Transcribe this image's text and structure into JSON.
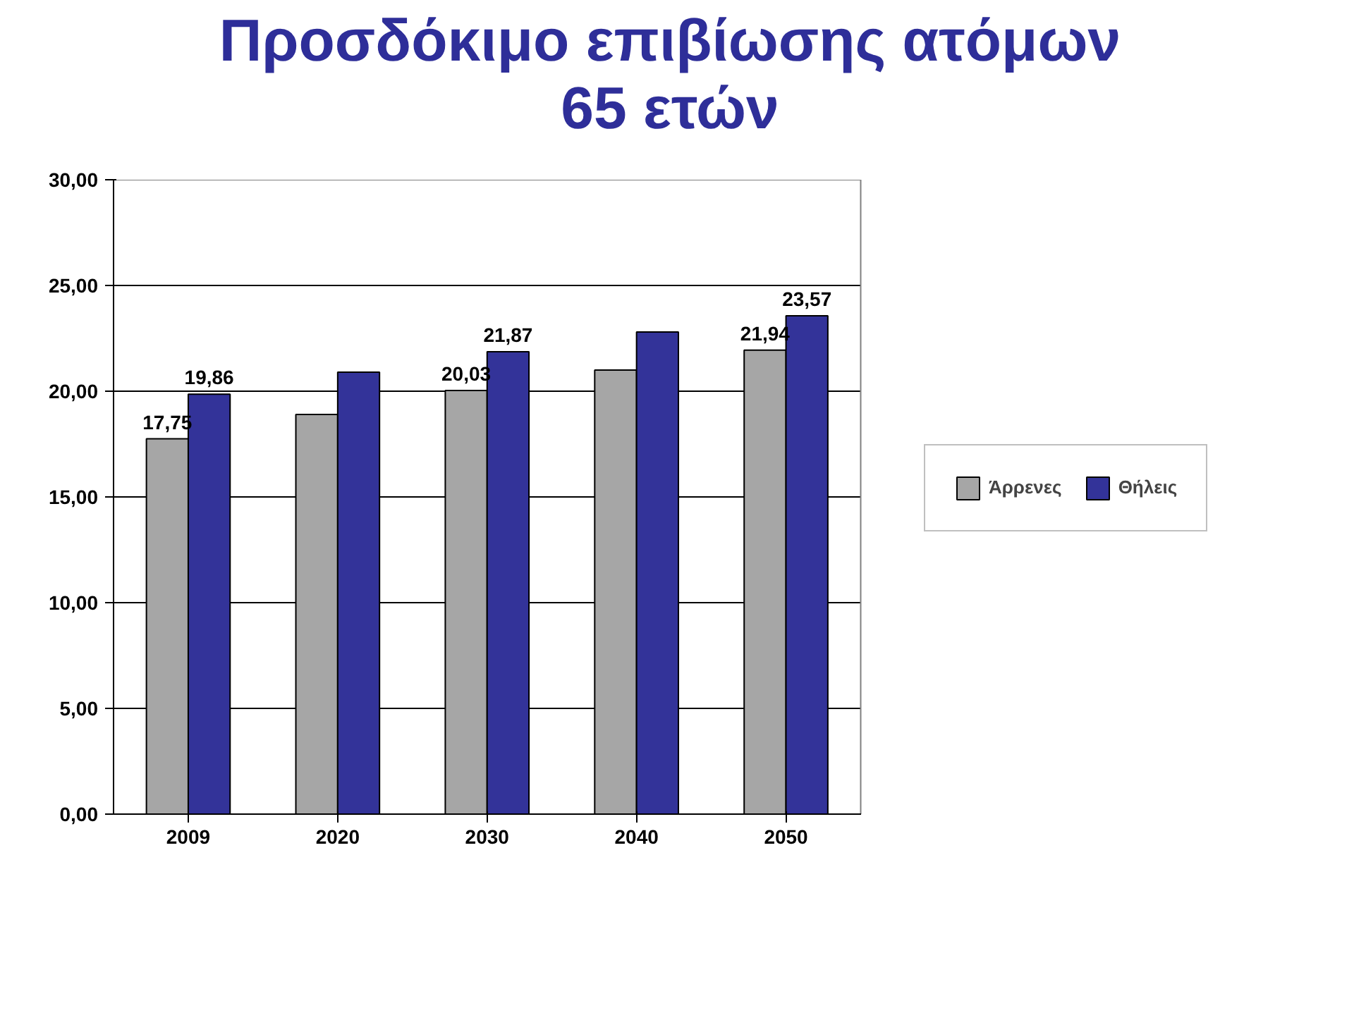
{
  "chart_data": {
    "type": "bar",
    "title": "Προσδόκιμο επιβίωσης ατόμων\n65 ετών",
    "categories": [
      "2009",
      "2020",
      "2030",
      "2040",
      "2050"
    ],
    "series": [
      {
        "name": "Άρρενες",
        "color": "#a6a6a6",
        "values": [
          17.75,
          18.9,
          20.03,
          21.0,
          21.94
        ],
        "value_labels": [
          "17,75",
          null,
          "20,03",
          null,
          "21,94"
        ]
      },
      {
        "name": "Θήλεις",
        "color": "#333399",
        "values": [
          19.86,
          20.9,
          21.87,
          22.8,
          23.57
        ],
        "value_labels": [
          "19,86",
          null,
          "21,87",
          null,
          "23,57"
        ]
      }
    ],
    "ylim": [
      0,
      30
    ],
    "yticks": [
      {
        "value": 0,
        "label": "0,00"
      },
      {
        "value": 5,
        "label": "5,00"
      },
      {
        "value": 10,
        "label": "10,00"
      },
      {
        "value": 15,
        "label": "15,00"
      },
      {
        "value": 20,
        "label": "20,00"
      },
      {
        "value": 25,
        "label": "25,00"
      },
      {
        "value": 30,
        "label": "30,00"
      }
    ],
    "grid": "y",
    "legend": "right"
  }
}
